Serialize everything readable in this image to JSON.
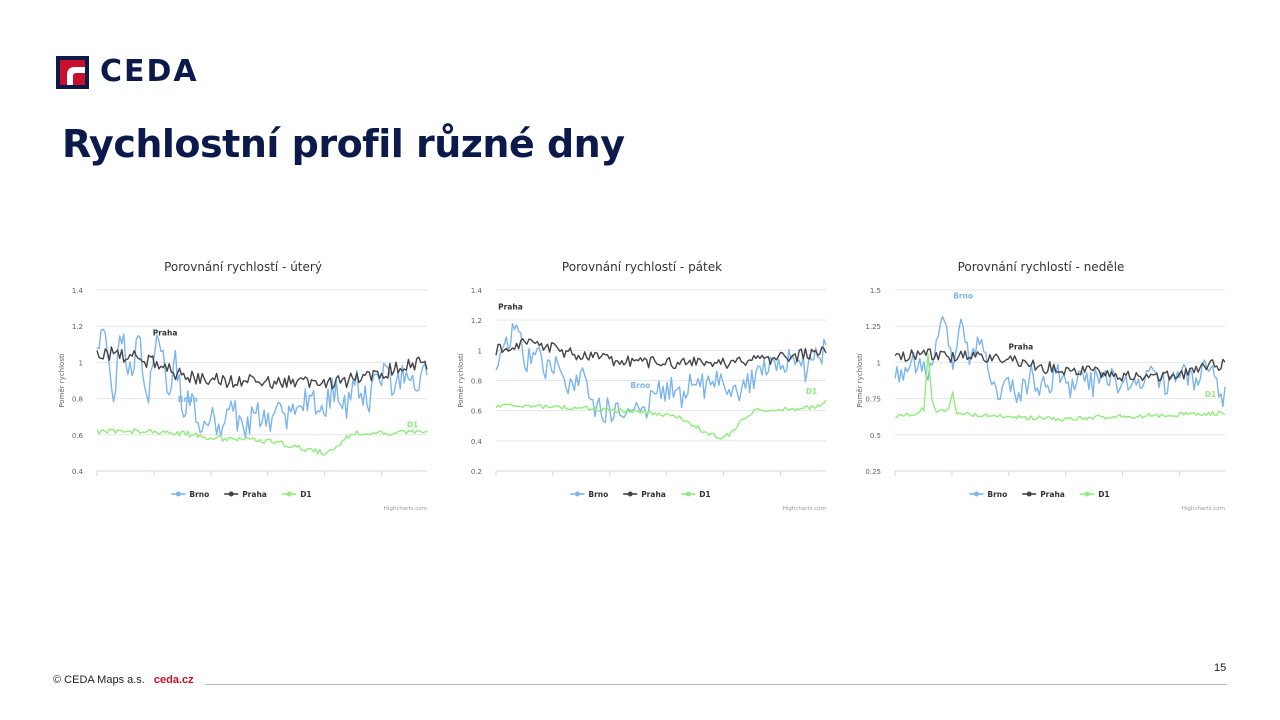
{
  "header": {
    "logo_text": "CEDA",
    "title": "Rychlostní profil různé dny",
    "brand_color": "#0b1a4a",
    "accent_color": "#c8102e"
  },
  "footer": {
    "copyright": "© CEDA Maps a.s.",
    "link": "ceda.cz",
    "page_number": "15"
  },
  "chart_data": [
    {
      "type": "line",
      "title": "Porovnání rychlostí - úterý",
      "ylabel": "Poměr rychlostí",
      "xlabel": "",
      "ylim": [
        0.4,
        1.4
      ],
      "yticks": [
        0.4,
        0.6,
        0.8,
        1,
        1.2,
        1.4
      ],
      "ytick_labels": [
        "0.4",
        "0.6",
        "0.8",
        "1",
        "1.2",
        "1.4"
      ],
      "grid": true,
      "legend": "bottom-center",
      "credit": "Highcharts.com",
      "series": [
        {
          "name": "Brno",
          "color": "#7cb5ec",
          "anchors": [
            [
              0,
              1.05
            ],
            [
              4,
              1.22
            ],
            [
              8,
              0.85
            ],
            [
              12,
              1.18
            ],
            [
              16,
              0.95
            ],
            [
              20,
              1.15
            ],
            [
              24,
              0.8
            ],
            [
              28,
              1.05
            ],
            [
              30,
              1.2
            ],
            [
              34,
              0.8
            ],
            [
              38,
              1.0
            ],
            [
              42,
              0.72
            ],
            [
              46,
              0.85
            ],
            [
              50,
              0.62
            ],
            [
              54,
              0.7
            ],
            [
              60,
              0.6
            ],
            [
              66,
              0.72
            ],
            [
              72,
              0.62
            ],
            [
              78,
              0.75
            ],
            [
              84,
              0.65
            ],
            [
              90,
              0.72
            ],
            [
              96,
              0.68
            ],
            [
              102,
              0.82
            ],
            [
              108,
              0.7
            ],
            [
              114,
              0.85
            ],
            [
              120,
              0.75
            ],
            [
              126,
              0.9
            ],
            [
              132,
              0.78
            ],
            [
              138,
              0.95
            ],
            [
              144,
              0.85
            ],
            [
              150,
              0.98
            ],
            [
              156,
              0.88
            ],
            [
              160,
              0.94
            ]
          ],
          "noise": 0.09
        },
        {
          "name": "Praha",
          "color": "#434348",
          "anchors": [
            [
              0,
              1.05
            ],
            [
              10,
              1.05
            ],
            [
              20,
              1.02
            ],
            [
              30,
              1.0
            ],
            [
              40,
              0.93
            ],
            [
              60,
              0.9
            ],
            [
              80,
              0.9
            ],
            [
              100,
              0.88
            ],
            [
              120,
              0.9
            ],
            [
              140,
              0.95
            ],
            [
              160,
              1.0
            ]
          ],
          "noise": 0.04
        },
        {
          "name": "D1",
          "color": "#90ed7d",
          "anchors": [
            [
              0,
              0.62
            ],
            [
              20,
              0.62
            ],
            [
              40,
              0.61
            ],
            [
              60,
              0.58
            ],
            [
              80,
              0.57
            ],
            [
              90,
              0.55
            ],
            [
              100,
              0.52
            ],
            [
              110,
              0.5
            ],
            [
              118,
              0.55
            ],
            [
              124,
              0.61
            ],
            [
              140,
              0.61
            ],
            [
              160,
              0.62
            ]
          ],
          "noise": 0.015
        }
      ],
      "annotations": [
        {
          "text": "Praha",
          "series": "Praha",
          "x": 33,
          "y": 1.15
        },
        {
          "text": "Brno",
          "series": "Brno",
          "x": 44,
          "y": 0.78
        },
        {
          "text": "D1",
          "series": "D1",
          "x": 153,
          "y": 0.64
        }
      ]
    },
    {
      "type": "line",
      "title": "Porovnání rychlostí - pátek",
      "ylabel": "Poměr rychlostí",
      "xlabel": "",
      "ylim": [
        0.2,
        1.4
      ],
      "yticks": [
        0.2,
        0.4,
        0.6,
        0.8,
        1,
        1.2,
        1.4
      ],
      "ytick_labels": [
        "0.2",
        "0.4",
        "0.6",
        "0.8",
        "1",
        "1.2",
        "1.4"
      ],
      "grid": true,
      "legend": "bottom-center",
      "credit": "Highcharts.com",
      "series": [
        {
          "name": "Brno",
          "color": "#7cb5ec",
          "anchors": [
            [
              0,
              0.95
            ],
            [
              6,
              1.05
            ],
            [
              10,
              1.18
            ],
            [
              14,
              0.9
            ],
            [
              20,
              1.0
            ],
            [
              26,
              0.85
            ],
            [
              32,
              0.9
            ],
            [
              36,
              0.75
            ],
            [
              42,
              0.8
            ],
            [
              48,
              0.65
            ],
            [
              54,
              0.6
            ],
            [
              60,
              0.58
            ],
            [
              66,
              0.65
            ],
            [
              72,
              0.6
            ],
            [
              78,
              0.7
            ],
            [
              84,
              0.75
            ],
            [
              90,
              0.7
            ],
            [
              96,
              0.8
            ],
            [
              102,
              0.75
            ],
            [
              108,
              0.85
            ],
            [
              114,
              0.7
            ],
            [
              120,
              0.78
            ],
            [
              126,
              0.82
            ],
            [
              132,
              0.9
            ],
            [
              138,
              0.85
            ],
            [
              144,
              0.95
            ],
            [
              150,
              0.88
            ],
            [
              156,
              0.95
            ],
            [
              160,
              1.0
            ]
          ],
          "noise": 0.09
        },
        {
          "name": "Praha",
          "color": "#434348",
          "anchors": [
            [
              0,
              1.0
            ],
            [
              10,
              1.05
            ],
            [
              20,
              1.05
            ],
            [
              30,
              1.0
            ],
            [
              40,
              0.97
            ],
            [
              60,
              0.93
            ],
            [
              80,
              0.92
            ],
            [
              100,
              0.92
            ],
            [
              120,
              0.92
            ],
            [
              140,
              0.95
            ],
            [
              160,
              1.0
            ]
          ],
          "noise": 0.04
        },
        {
          "name": "D1",
          "color": "#90ed7d",
          "anchors": [
            [
              0,
              0.63
            ],
            [
              20,
              0.63
            ],
            [
              40,
              0.62
            ],
            [
              60,
              0.6
            ],
            [
              80,
              0.58
            ],
            [
              90,
              0.55
            ],
            [
              100,
              0.47
            ],
            [
              108,
              0.42
            ],
            [
              114,
              0.45
            ],
            [
              120,
              0.55
            ],
            [
              126,
              0.6
            ],
            [
              140,
              0.61
            ],
            [
              155,
              0.62
            ],
            [
              160,
              0.66
            ]
          ],
          "noise": 0.015
        }
      ],
      "annotations": [
        {
          "text": "Praha",
          "series": "Praha",
          "x": 7,
          "y": 1.27
        },
        {
          "text": "Brno",
          "series": "Brno",
          "x": 70,
          "y": 0.75
        },
        {
          "text": "D1",
          "series": "D1",
          "x": 153,
          "y": 0.71
        }
      ]
    },
    {
      "type": "line",
      "title": "Porovnání rychlostí - neděle",
      "ylabel": "Poměr rychlostí",
      "xlabel": "",
      "ylim": [
        0.25,
        1.5
      ],
      "yticks": [
        0.25,
        0.5,
        0.75,
        1,
        1.25,
        1.5
      ],
      "ytick_labels": [
        "0.25",
        "0.5",
        "0.75",
        "1",
        "1.25",
        "1.5"
      ],
      "grid": true,
      "legend": "bottom-center",
      "credit": "Highcharts.com",
      "series": [
        {
          "name": "Brno",
          "color": "#7cb5ec",
          "anchors": [
            [
              0,
              0.9
            ],
            [
              8,
              1.0
            ],
            [
              16,
              0.95
            ],
            [
              24,
              1.3
            ],
            [
              28,
              1.0
            ],
            [
              32,
              1.3
            ],
            [
              36,
              1.0
            ],
            [
              42,
              1.15
            ],
            [
              48,
              0.8
            ],
            [
              54,
              0.85
            ],
            [
              60,
              0.8
            ],
            [
              66,
              0.9
            ],
            [
              72,
              0.82
            ],
            [
              78,
              0.92
            ],
            [
              84,
              0.8
            ],
            [
              90,
              0.92
            ],
            [
              96,
              0.85
            ],
            [
              102,
              0.95
            ],
            [
              108,
              0.8
            ],
            [
              114,
              0.9
            ],
            [
              120,
              0.85
            ],
            [
              126,
              0.92
            ],
            [
              132,
              0.82
            ],
            [
              138,
              0.95
            ],
            [
              144,
              0.88
            ],
            [
              150,
              0.98
            ],
            [
              156,
              0.85
            ],
            [
              160,
              0.75
            ]
          ],
          "noise": 0.09
        },
        {
          "name": "Praha",
          "color": "#434348",
          "anchors": [
            [
              0,
              1.05
            ],
            [
              20,
              1.05
            ],
            [
              40,
              1.03
            ],
            [
              60,
              1.0
            ],
            [
              80,
              0.95
            ],
            [
              100,
              0.93
            ],
            [
              120,
              0.9
            ],
            [
              140,
              0.92
            ],
            [
              160,
              1.0
            ]
          ],
          "noise": 0.045
        },
        {
          "name": "D1",
          "color": "#90ed7d",
          "anchors": [
            [
              0,
              0.62
            ],
            [
              10,
              0.65
            ],
            [
              14,
              0.68
            ],
            [
              16,
              1.05
            ],
            [
              18,
              0.75
            ],
            [
              20,
              0.65
            ],
            [
              26,
              0.68
            ],
            [
              28,
              0.8
            ],
            [
              30,
              0.65
            ],
            [
              40,
              0.64
            ],
            [
              60,
              0.62
            ],
            [
              80,
              0.61
            ],
            [
              100,
              0.62
            ],
            [
              120,
              0.63
            ],
            [
              140,
              0.64
            ],
            [
              160,
              0.65
            ]
          ],
          "noise": 0.015
        }
      ],
      "annotations": [
        {
          "text": "Brno",
          "series": "Brno",
          "x": 33,
          "y": 1.44
        },
        {
          "text": "Praha",
          "series": "Praha",
          "x": 61,
          "y": 1.09
        },
        {
          "text": "D1",
          "series": "D1",
          "x": 153,
          "y": 0.76
        }
      ]
    }
  ]
}
